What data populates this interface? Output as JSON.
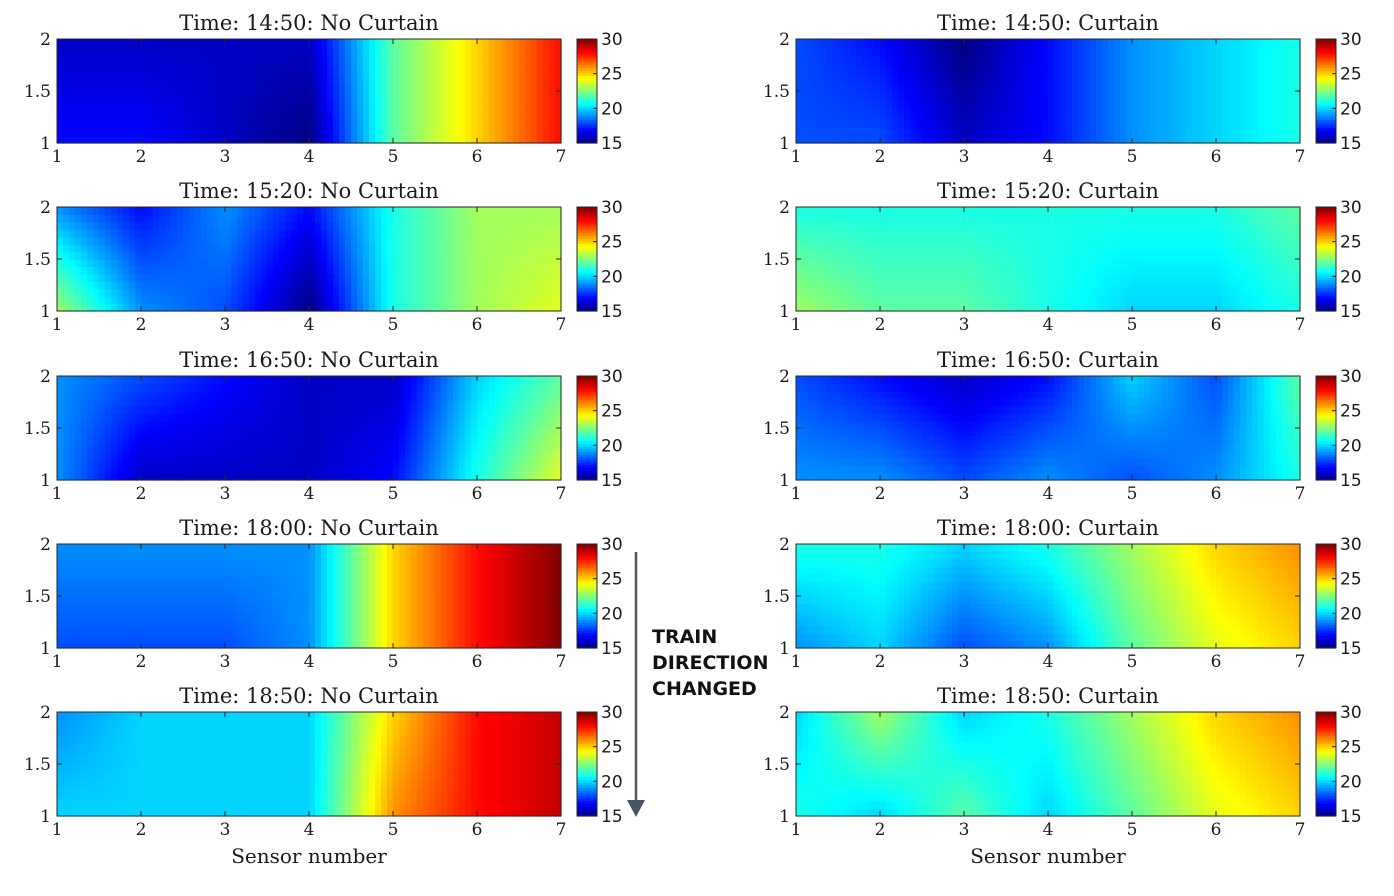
{
  "chart_data": {
    "type": "heatmap",
    "colormap": "jet",
    "xlabel": "Sensor number",
    "x": [
      1,
      2,
      3,
      4,
      5,
      6,
      7
    ],
    "y": [
      1,
      2
    ],
    "x_ticks": [
      "1",
      "2",
      "3",
      "4",
      "5",
      "6",
      "7"
    ],
    "y_ticks": [
      "1",
      "1.5",
      "2"
    ],
    "colorbar_range": [
      15,
      30
    ],
    "colorbar_ticks": [
      "15",
      "20",
      "25",
      "30"
    ],
    "annotation": {
      "lines": [
        "TRAIN",
        "DIRECTION",
        "CHANGED"
      ]
    },
    "panels": [
      {
        "title": "Time: 14:50: No Curtain",
        "z": [
          [
            17,
            17,
            16,
            15,
            22,
            25,
            28
          ],
          [
            16,
            16,
            16,
            16,
            22,
            25,
            28
          ]
        ]
      },
      {
        "title": "Time: 14:50: Curtain",
        "z": [
          [
            18,
            18,
            16,
            17,
            19,
            20,
            21
          ],
          [
            18,
            17,
            15,
            17,
            19,
            20,
            21
          ]
        ]
      },
      {
        "title": "Time: 15:20: No Curtain",
        "z": [
          [
            23,
            19,
            18,
            15,
            21,
            23,
            24
          ],
          [
            19,
            17,
            19,
            17,
            21,
            23,
            23
          ]
        ]
      },
      {
        "title": "Time: 15:20: Curtain",
        "z": [
          [
            23,
            22,
            22,
            21,
            20,
            20,
            21
          ],
          [
            21,
            21,
            21,
            21,
            21,
            21,
            22
          ]
        ]
      },
      {
        "title": "Time: 16:50: No Curtain",
        "z": [
          [
            19,
            16,
            16,
            16,
            17,
            21,
            24
          ],
          [
            19,
            18,
            17,
            16,
            16,
            20,
            22
          ]
        ]
      },
      {
        "title": "Time: 16:50: Curtain",
        "z": [
          [
            19,
            19,
            18,
            19,
            18,
            19,
            21
          ],
          [
            18,
            17,
            16,
            17,
            20,
            18,
            22
          ]
        ]
      },
      {
        "title": "Time: 18:00: No Curtain",
        "z": [
          [
            18,
            18,
            18,
            19,
            25,
            28,
            30
          ],
          [
            19,
            19,
            19,
            19,
            25,
            28,
            30
          ]
        ]
      },
      {
        "title": "Time: 18:00: Curtain",
        "z": [
          [
            19,
            20,
            18,
            19,
            22,
            24,
            25
          ],
          [
            21,
            21,
            20,
            21,
            23,
            25,
            26
          ]
        ]
      },
      {
        "title": "Time: 18:50: No Curtain",
        "z": [
          [
            20,
            20,
            20,
            20,
            26,
            28,
            29
          ],
          [
            19,
            20,
            20,
            20,
            25,
            28,
            29
          ]
        ]
      },
      {
        "title": "Time: 18:50: Curtain",
        "z": [
          [
            21,
            20,
            22,
            20,
            22,
            24,
            25
          ],
          [
            20,
            23,
            20,
            21,
            23,
            25,
            26
          ]
        ]
      }
    ]
  }
}
